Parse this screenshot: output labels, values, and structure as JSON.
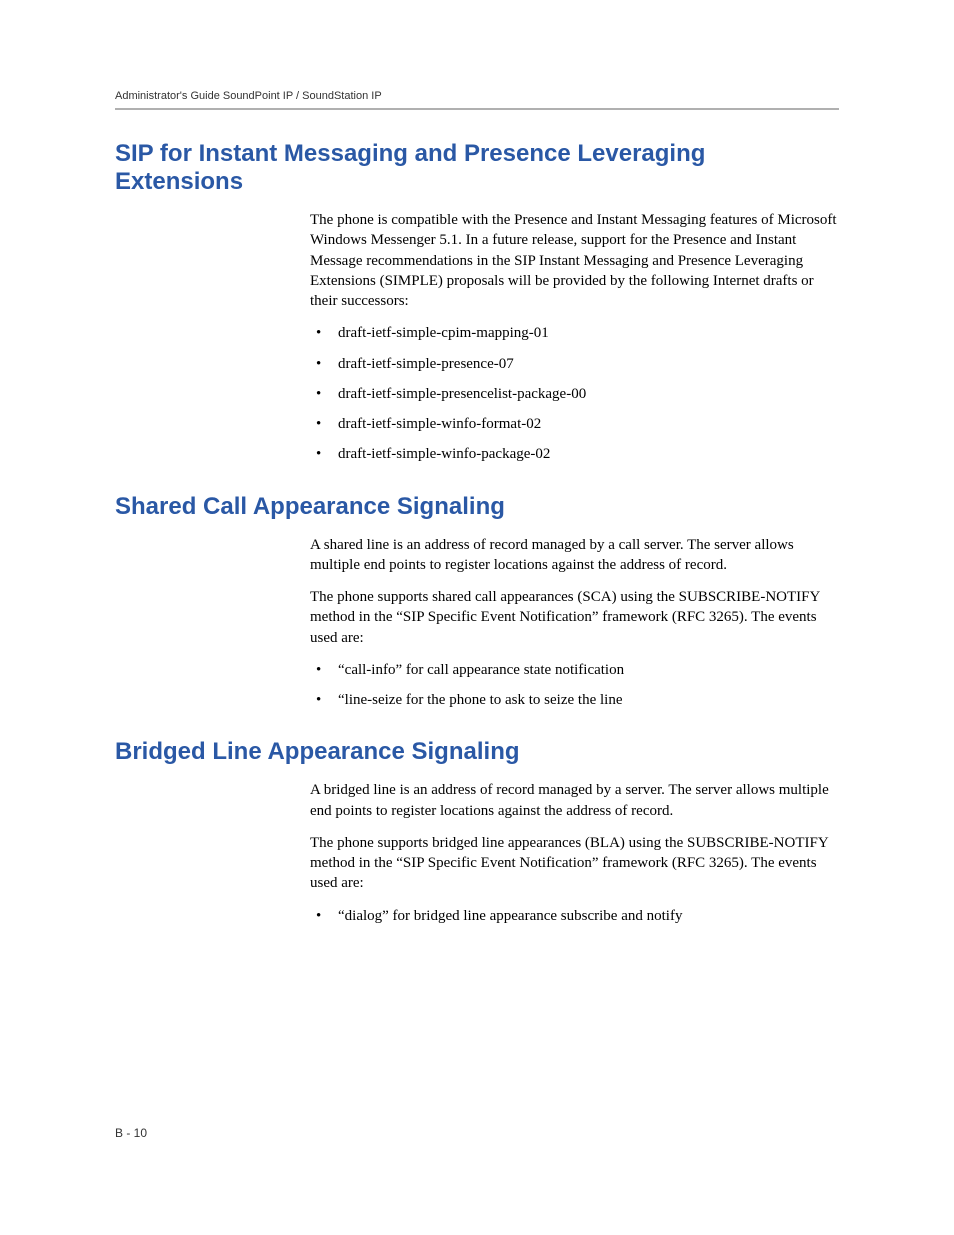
{
  "colors": {
    "heading": "#2a58a5",
    "text": "#000000",
    "rule": "#b0b0b0",
    "background": "#ffffff"
  },
  "typography": {
    "heading_font": "Futura / Century Gothic",
    "heading_size_pt": 18,
    "body_font": "Palatino",
    "body_size_pt": 11,
    "header_size_pt": 8
  },
  "header": {
    "text": "Administrator's Guide SoundPoint IP / SoundStation IP"
  },
  "sections": [
    {
      "id": "simple",
      "heading": "SIP for Instant Messaging and Presence Leveraging Extensions",
      "paragraphs": [
        "The phone is compatible with the Presence and Instant Messaging features of Microsoft Windows Messenger 5.1. In a future release, support for the Presence and Instant Message recommendations in the SIP Instant Messaging and Presence Leveraging Extensions (SIMPLE) proposals will be provided by the following Internet drafts or their successors:"
      ],
      "bullets": [
        "draft-ietf-simple-cpim-mapping-01",
        "draft-ietf-simple-presence-07",
        "draft-ietf-simple-presencelist-package-00",
        "draft-ietf-simple-winfo-format-02",
        "draft-ietf-simple-winfo-package-02"
      ]
    },
    {
      "id": "sca",
      "heading": "Shared Call Appearance Signaling",
      "paragraphs": [
        "A shared line is an address of record managed by a call server. The server allows multiple end points to register locations against the address of record.",
        "The phone supports shared call appearances (SCA) using the SUBSCRIBE-NOTIFY method in the “SIP Specific Event Notification” framework (RFC 3265). The events used are:"
      ],
      "bullets": [
        "“call-info” for call appearance state notification",
        "“line-seize for the phone to ask to seize the line"
      ]
    },
    {
      "id": "bla",
      "heading": "Bridged Line Appearance Signaling",
      "paragraphs": [
        "A bridged line is an address of record managed by a server. The server allows multiple end points to register locations against the address of record.",
        "The phone supports bridged line appearances (BLA) using the SUBSCRIBE-NOTIFY method in the “SIP Specific Event Notification” framework (RFC 3265). The events used are:"
      ],
      "bullets": [
        "“dialog” for bridged line appearance subscribe and notify"
      ]
    }
  ],
  "footer": {
    "page_number": "B - 10"
  }
}
